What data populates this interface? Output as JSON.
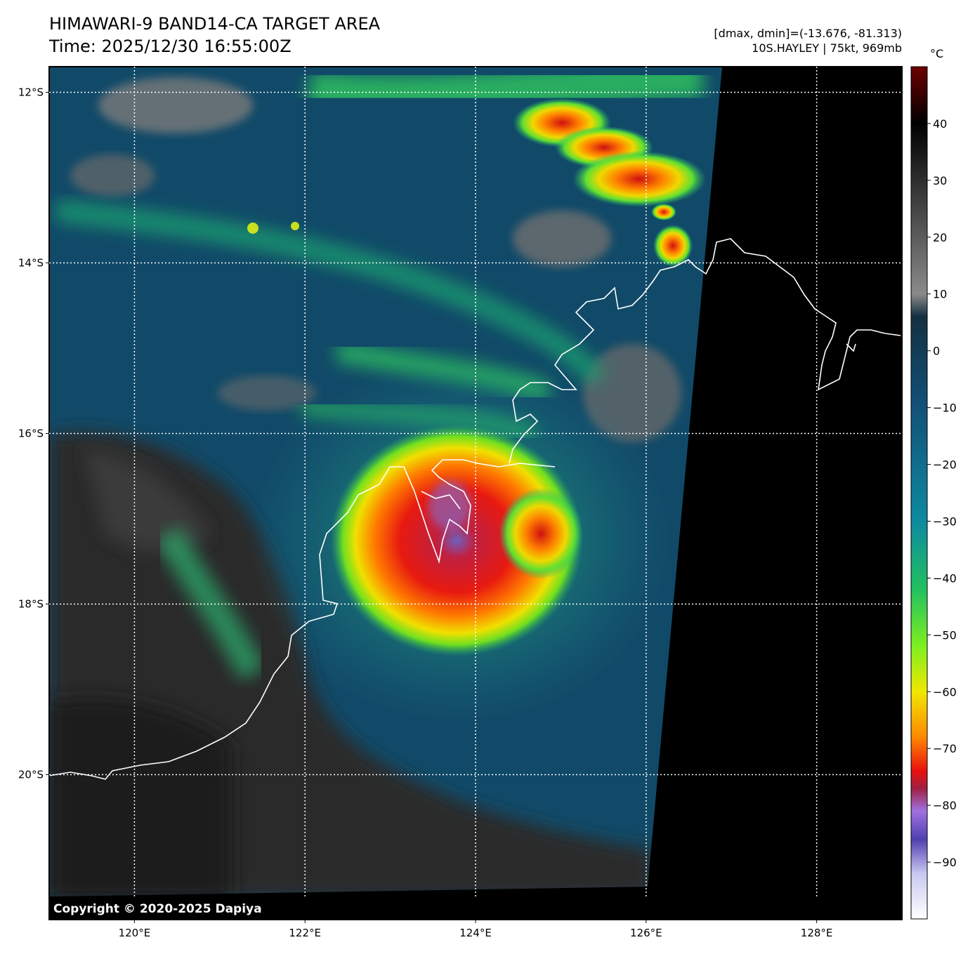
{
  "header": {
    "title": "HIMAWARI-9 BAND14-CA TARGET AREA",
    "time": "Time: 2025/12/30 16:55:00Z",
    "range": "[dmax, dmin]=(-13.676, -81.313)",
    "storm": "10S.HAYLEY | 75kt, 969mb"
  },
  "map": {
    "lon_range": [
      119,
      129
    ],
    "lat_range": [
      -21.7,
      -11.7
    ],
    "lon_ticks": [
      {
        "value": 120,
        "label": "120°E"
      },
      {
        "value": 122,
        "label": "122°E"
      },
      {
        "value": 124,
        "label": "124°E"
      },
      {
        "value": 126,
        "label": "126°E"
      },
      {
        "value": 128,
        "label": "128°E"
      }
    ],
    "lat_ticks": [
      {
        "value": -12,
        "label": "12°S"
      },
      {
        "value": -14,
        "label": "14°S"
      },
      {
        "value": -16,
        "label": "16°S"
      },
      {
        "value": -18,
        "label": "18°S"
      },
      {
        "value": -20,
        "label": "20°S"
      }
    ],
    "storm_center": {
      "lon": 123.6,
      "lat": -16.8
    },
    "copyright": "Copyright © 2020-2025 Dapiya"
  },
  "colorbar": {
    "unit": "°C",
    "range": [
      -100,
      50
    ],
    "ticks": [
      40,
      30,
      20,
      10,
      0,
      -10,
      -20,
      -30,
      -40,
      -50,
      -60,
      -70,
      -80,
      -90
    ],
    "tick_labels": [
      "40",
      "30",
      "20",
      "10",
      "0",
      "−10",
      "−20",
      "−30",
      "−40",
      "−50",
      "−60",
      "−70",
      "−80",
      "−90"
    ],
    "stops": [
      {
        "t": 50,
        "color": "#6e0000"
      },
      {
        "t": 40,
        "color": "#000000"
      },
      {
        "t": 10,
        "color": "#8a8a8a"
      },
      {
        "t": 6,
        "color": "#143040"
      },
      {
        "t": -10,
        "color": "#12517a"
      },
      {
        "t": -30,
        "color": "#0e8aa0"
      },
      {
        "t": -42,
        "color": "#22c060"
      },
      {
        "t": -52,
        "color": "#7ef020"
      },
      {
        "t": -60,
        "color": "#f0e800"
      },
      {
        "t": -68,
        "color": "#ff8800"
      },
      {
        "t": -74,
        "color": "#e81010"
      },
      {
        "t": -77,
        "color": "#a02040"
      },
      {
        "t": -81,
        "color": "#a070e0"
      },
      {
        "t": -86,
        "color": "#5040b0"
      },
      {
        "t": -92,
        "color": "#c8c8f0"
      },
      {
        "t": -100,
        "color": "#ffffff"
      }
    ]
  }
}
